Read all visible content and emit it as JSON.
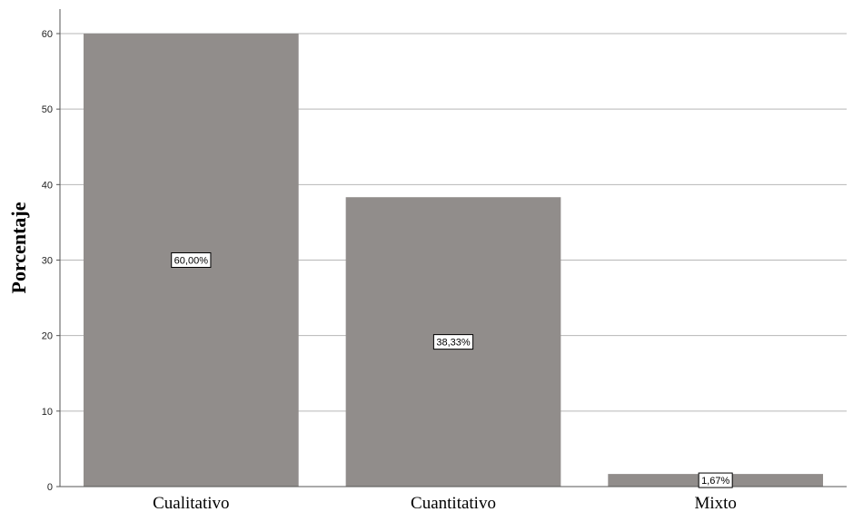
{
  "chart_data": {
    "type": "bar",
    "categories": [
      "Cualitativo",
      "Cuantitativo",
      "Mixto"
    ],
    "values": [
      60.0,
      38.33,
      1.67
    ],
    "data_labels": [
      "60,00%",
      "38,33%",
      "1,67%"
    ],
    "title": "",
    "xlabel": "",
    "ylabel": "Porcentaje",
    "ylim": [
      0,
      60
    ],
    "yticks": [
      0,
      10,
      20,
      30,
      40,
      50,
      60
    ],
    "grid": "horizontal",
    "colors": {
      "bar": "#918d8b",
      "grid": "#b7b7b7",
      "axis": "#555555"
    }
  }
}
